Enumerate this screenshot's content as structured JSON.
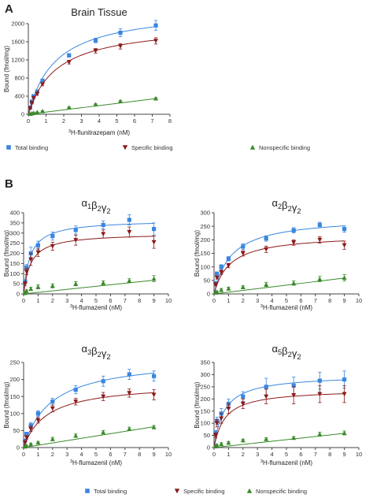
{
  "panels": [
    {
      "letter": "A"
    },
    {
      "letter": "B"
    }
  ],
  "legend_items": [
    {
      "label": "Total binding",
      "color": "#3a86e0",
      "marker": "square"
    },
    {
      "label": "Specific binding",
      "color": "#8b1a1a",
      "marker": "triangle-down"
    },
    {
      "label": "Nonspecific binding",
      "color": "#3a8a2a",
      "marker": "triangle-up"
    }
  ],
  "chart_data": [
    {
      "type": "scatter",
      "title": "Brain Tissue",
      "xlabel": "3H-flunitrazepam (nM)",
      "ylabel": "Bound (fmol/mg)",
      "xlim": [
        0,
        8
      ],
      "ylim": [
        0,
        2000
      ],
      "xticks": [
        0,
        1,
        2,
        3,
        4,
        5,
        6,
        7,
        8
      ],
      "yticks": [
        0,
        400,
        800,
        1200,
        1600,
        2000
      ],
      "series": [
        {
          "name": "Total binding",
          "x": [
            0.1,
            0.2,
            0.3,
            0.5,
            0.8,
            2.3,
            3.8,
            5.2,
            7.2
          ],
          "y": [
            150,
            280,
            400,
            500,
            740,
            1300,
            1630,
            1800,
            1960
          ],
          "err": [
            20,
            25,
            25,
            30,
            30,
            40,
            50,
            90,
            110
          ],
          "fit_bmax": 2350,
          "fit_kd": 1.55,
          "fit_slope": 0
        },
        {
          "name": "Specific binding",
          "x": [
            0.1,
            0.2,
            0.3,
            0.5,
            0.8,
            2.3,
            3.8,
            5.2,
            7.2
          ],
          "y": [
            130,
            250,
            360,
            450,
            660,
            1150,
            1400,
            1500,
            1620
          ],
          "err": [
            20,
            25,
            25,
            30,
            30,
            40,
            50,
            60,
            70
          ],
          "fit_bmax": 2000,
          "fit_kd": 1.6,
          "fit_slope": 0
        },
        {
          "name": "Nonspecific binding",
          "x": [
            0.1,
            0.2,
            0.3,
            0.5,
            0.8,
            2.3,
            3.8,
            5.2,
            7.2
          ],
          "y": [
            10,
            20,
            30,
            45,
            70,
            150,
            220,
            290,
            350
          ],
          "err": [
            5,
            5,
            5,
            5,
            5,
            10,
            10,
            10,
            15
          ],
          "fit_bmax": 0,
          "fit_kd": 1,
          "fit_slope": 48
        }
      ]
    },
    {
      "type": "scatter",
      "title": "α1β2γ2",
      "xlabel": "3H-flumazenil (nM)",
      "ylabel": "Bound (fmol/mg)",
      "xlim": [
        0,
        10
      ],
      "ylim": [
        0,
        400
      ],
      "xticks": [
        0,
        1,
        2,
        3,
        4,
        5,
        6,
        7,
        8,
        9,
        10
      ],
      "yticks": [
        0,
        50,
        100,
        150,
        200,
        250,
        300,
        350,
        400
      ],
      "series": [
        {
          "name": "Total binding",
          "x": [
            0.1,
            0.2,
            0.5,
            1.0,
            2.0,
            3.6,
            5.5,
            7.3,
            9.0
          ],
          "y": [
            60,
            130,
            200,
            240,
            285,
            315,
            340,
            365,
            320
          ],
          "err": [
            10,
            15,
            30,
            20,
            20,
            20,
            20,
            25,
            30
          ],
          "fit_bmax": 365,
          "fit_kd": 0.45,
          "fit_slope": 0
        },
        {
          "name": "Specific binding",
          "x": [
            0.1,
            0.2,
            0.5,
            1.0,
            2.0,
            3.6,
            5.5,
            7.3,
            9.0
          ],
          "y": [
            50,
            110,
            170,
            205,
            235,
            265,
            295,
            305,
            255
          ],
          "err": [
            10,
            15,
            30,
            20,
            20,
            25,
            20,
            25,
            30
          ],
          "fit_bmax": 300,
          "fit_kd": 0.5,
          "fit_slope": 0
        },
        {
          "name": "Nonspecific binding",
          "x": [
            0.1,
            0.2,
            0.5,
            1.0,
            2.0,
            3.6,
            5.5,
            7.3,
            9.0
          ],
          "y": [
            5,
            15,
            25,
            35,
            40,
            50,
            55,
            65,
            75
          ],
          "err": [
            5,
            5,
            8,
            10,
            10,
            10,
            10,
            10,
            15
          ],
          "fit_bmax": 0,
          "fit_kd": 1,
          "fit_slope": 7.5
        }
      ]
    },
    {
      "type": "scatter",
      "title": "α2β2γ2",
      "xlabel": "3H-flumazenil (nM)",
      "ylabel": "Bound (fmol/mg)",
      "xlim": [
        0,
        10
      ],
      "ylim": [
        0,
        300
      ],
      "xticks": [
        0,
        1,
        2,
        3,
        4,
        5,
        6,
        7,
        8,
        9,
        10
      ],
      "yticks": [
        0,
        50,
        100,
        150,
        200,
        250,
        300
      ],
      "series": [
        {
          "name": "Total binding",
          "x": [
            0.1,
            0.2,
            0.5,
            1.0,
            2.0,
            3.6,
            5.5,
            7.3,
            9.0
          ],
          "y": [
            40,
            75,
            100,
            130,
            175,
            205,
            235,
            255,
            240
          ],
          "err": [
            5,
            5,
            8,
            8,
            10,
            10,
            10,
            10,
            12
          ],
          "fit_bmax": 285,
          "fit_kd": 1.2,
          "fit_slope": 0
        },
        {
          "name": "Specific binding",
          "x": [
            0.1,
            0.2,
            0.5,
            1.0,
            2.0,
            3.6,
            5.5,
            7.3,
            9.0
          ],
          "y": [
            35,
            60,
            80,
            105,
            150,
            165,
            190,
            200,
            180
          ],
          "err": [
            5,
            5,
            8,
            8,
            10,
            12,
            10,
            12,
            15
          ],
          "fit_bmax": 220,
          "fit_kd": 1.1,
          "fit_slope": 0
        },
        {
          "name": "Nonspecific binding",
          "x": [
            0.1,
            0.2,
            0.5,
            1.0,
            2.0,
            3.6,
            5.5,
            7.3,
            9.0
          ],
          "y": [
            5,
            8,
            15,
            20,
            25,
            35,
            40,
            55,
            60
          ],
          "err": [
            3,
            3,
            5,
            5,
            5,
            8,
            8,
            10,
            12
          ],
          "fit_bmax": 0,
          "fit_kd": 1,
          "fit_slope": 6.5
        }
      ]
    },
    {
      "type": "scatter",
      "title": "α3β2γ2",
      "xlabel": "3H-flumazenil (nM)",
      "ylabel": "Bound (fmol/mg)",
      "xlim": [
        0,
        10
      ],
      "ylim": [
        0,
        250
      ],
      "xticks": [
        0,
        1,
        2,
        3,
        4,
        5,
        6,
        7,
        8,
        9,
        10
      ],
      "yticks": [
        0,
        50,
        100,
        150,
        200,
        250
      ],
      "series": [
        {
          "name": "Total binding",
          "x": [
            0.1,
            0.2,
            0.5,
            1.0,
            2.0,
            3.6,
            5.5,
            7.3,
            9.0
          ],
          "y": [
            20,
            40,
            65,
            100,
            135,
            170,
            195,
            215,
            210
          ],
          "err": [
            5,
            5,
            8,
            8,
            10,
            12,
            15,
            15,
            15
          ],
          "fit_bmax": 265,
          "fit_kd": 1.9,
          "fit_slope": 0
        },
        {
          "name": "Specific binding",
          "x": [
            0.1,
            0.2,
            0.5,
            1.0,
            2.0,
            3.6,
            5.5,
            7.3,
            9.0
          ],
          "y": [
            15,
            30,
            55,
            80,
            115,
            135,
            150,
            160,
            155
          ],
          "err": [
            5,
            5,
            8,
            8,
            10,
            10,
            12,
            12,
            15
          ],
          "fit_bmax": 190,
          "fit_kd": 1.6,
          "fit_slope": 0
        },
        {
          "name": "Nonspecific binding",
          "x": [
            0.1,
            0.2,
            0.5,
            1.0,
            2.0,
            3.6,
            5.5,
            7.3,
            9.0
          ],
          "y": [
            3,
            5,
            10,
            15,
            25,
            35,
            45,
            55,
            60
          ],
          "err": [
            2,
            2,
            3,
            3,
            5,
            5,
            5,
            5,
            5
          ],
          "fit_bmax": 0,
          "fit_kd": 1,
          "fit_slope": 6.8
        }
      ]
    },
    {
      "type": "scatter",
      "title": "α5β2γ2",
      "xlabel": "3H-flumazenil (nM)",
      "ylabel": "Bound (fmol/mg)",
      "xlim": [
        0,
        10
      ],
      "ylim": [
        0,
        350
      ],
      "xticks": [
        0,
        1,
        2,
        3,
        4,
        5,
        6,
        7,
        8,
        9,
        10
      ],
      "yticks": [
        0,
        50,
        100,
        150,
        200,
        250,
        300,
        350
      ],
      "series": [
        {
          "name": "Total binding",
          "x": [
            0.1,
            0.2,
            0.5,
            1.0,
            2.0,
            3.6,
            5.5,
            7.3,
            9.0
          ],
          "y": [
            60,
            110,
            140,
            180,
            210,
            250,
            255,
            275,
            280
          ],
          "err": [
            10,
            15,
            20,
            20,
            20,
            35,
            35,
            35,
            35
          ],
          "fit_bmax": 300,
          "fit_kd": 0.7,
          "fit_slope": 0
        },
        {
          "name": "Specific binding",
          "x": [
            0.1,
            0.2,
            0.5,
            1.0,
            2.0,
            3.6,
            5.5,
            7.3,
            9.0
          ],
          "y": [
            50,
            100,
            120,
            160,
            180,
            210,
            215,
            220,
            220
          ],
          "err": [
            10,
            15,
            20,
            20,
            20,
            30,
            35,
            35,
            35
          ],
          "fit_bmax": 240,
          "fit_kd": 0.75,
          "fit_slope": 0
        },
        {
          "name": "Nonspecific binding",
          "x": [
            0.1,
            0.2,
            0.5,
            1.0,
            2.0,
            3.6,
            5.5,
            7.3,
            9.0
          ],
          "y": [
            5,
            10,
            15,
            20,
            30,
            35,
            40,
            55,
            60
          ],
          "err": [
            3,
            3,
            5,
            5,
            5,
            5,
            5,
            8,
            8
          ],
          "fit_bmax": 0,
          "fit_kd": 1,
          "fit_slope": 6.5
        }
      ]
    }
  ]
}
